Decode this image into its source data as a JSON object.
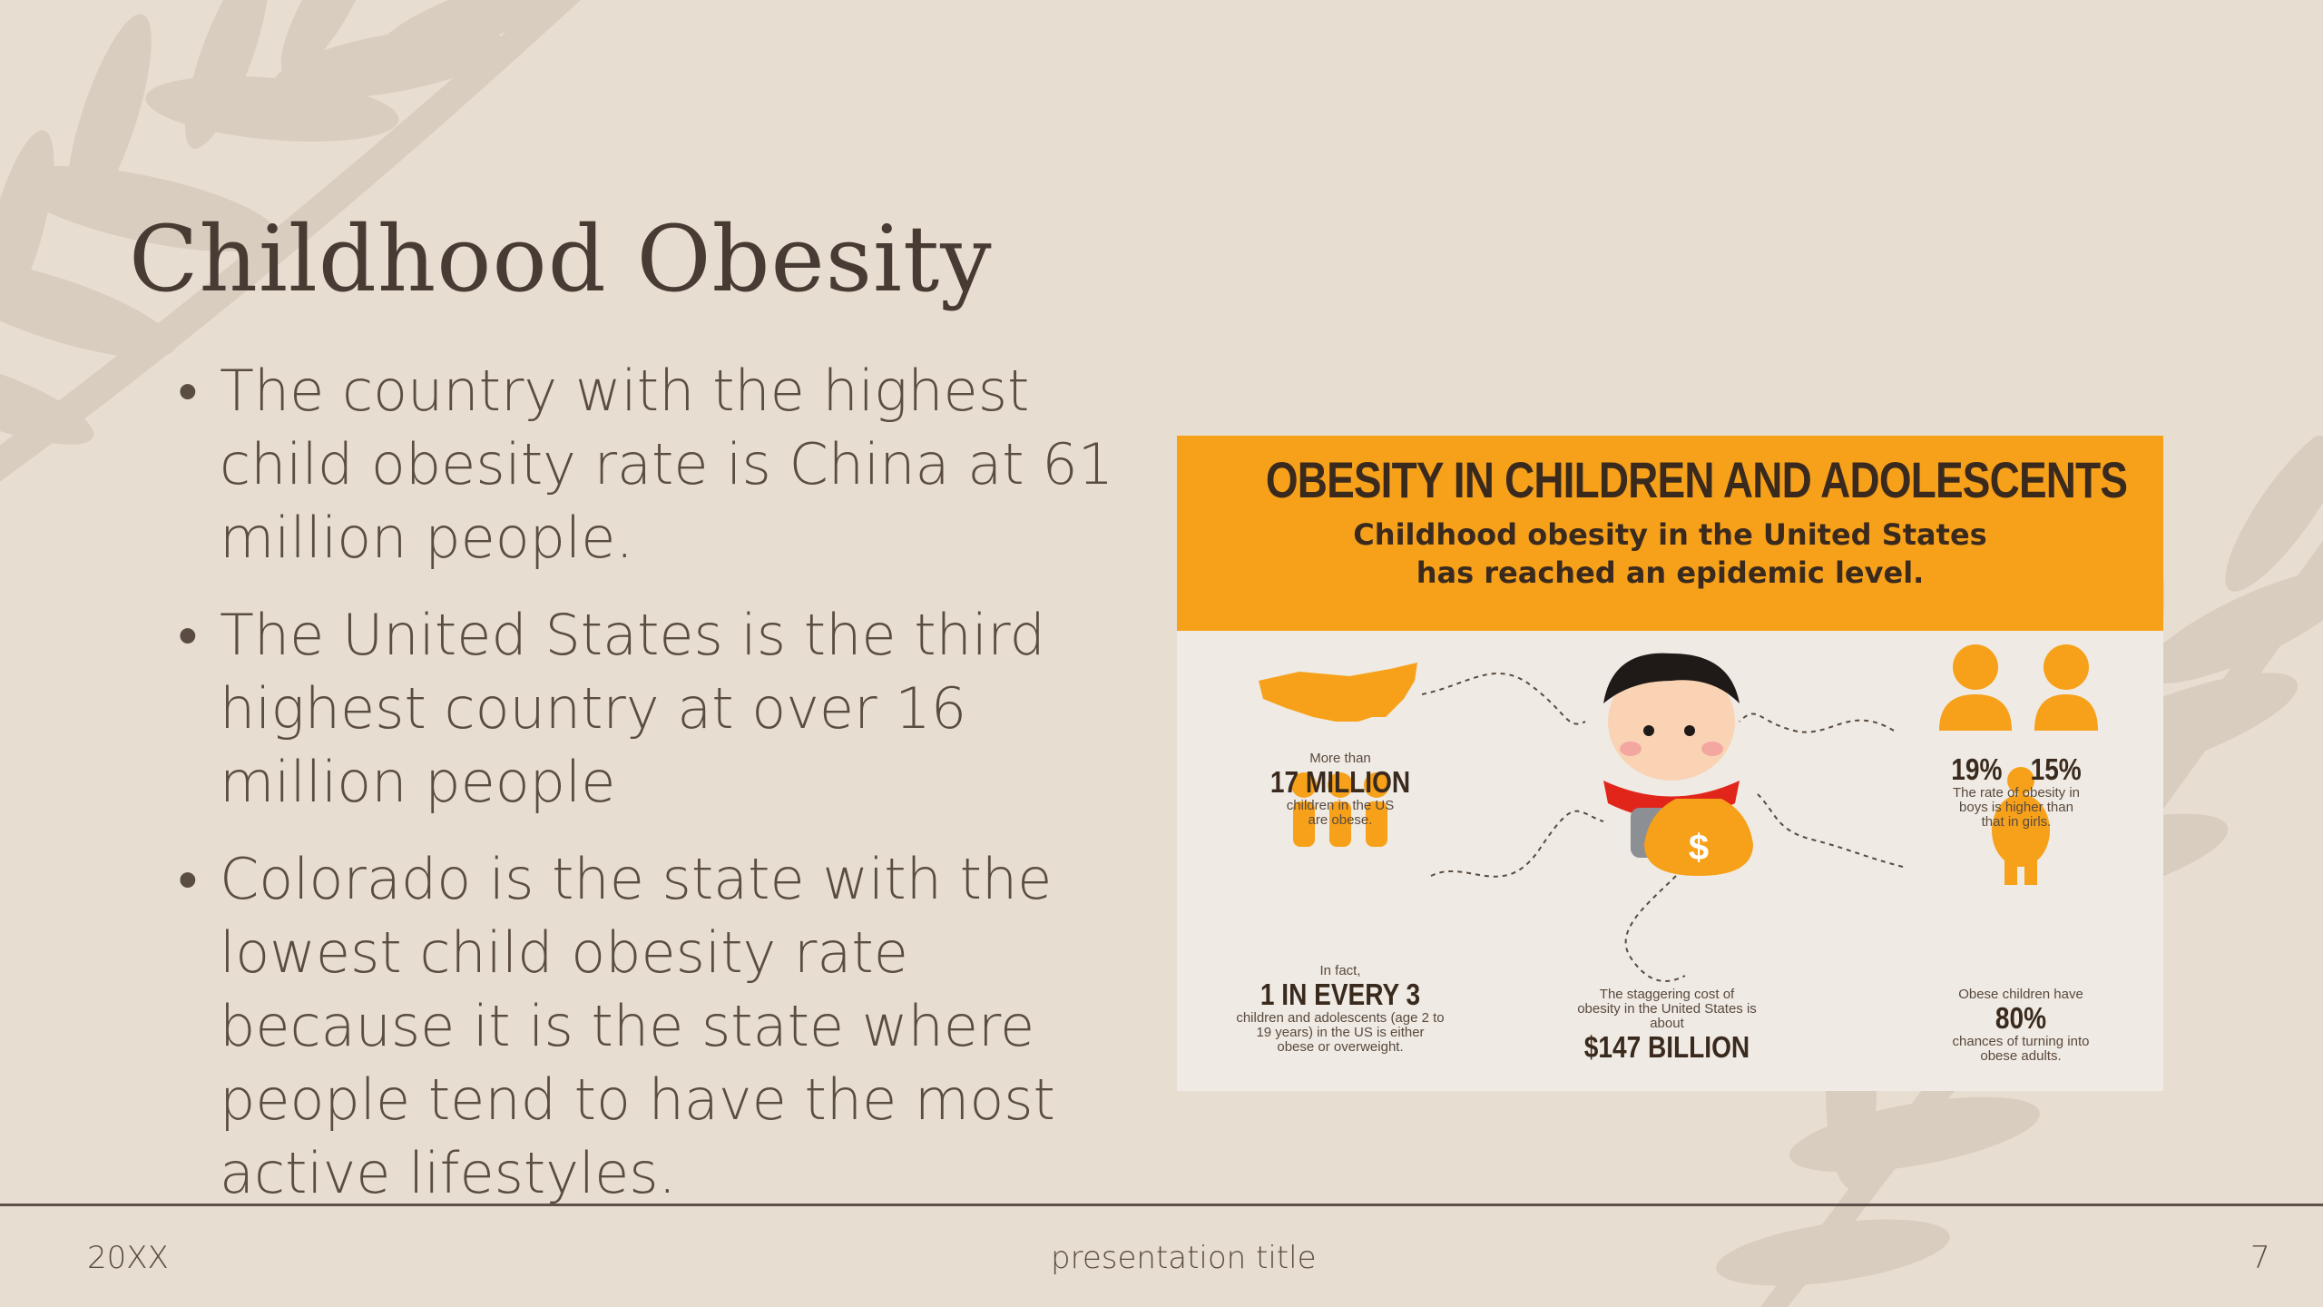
{
  "slide": {
    "title": "Childhood Obesity",
    "bullets": [
      "The country with the highest child obesity rate is China at 61 million people.",
      "The United States is the third highest country at over 16 million people",
      "Colorado is the state with the lowest child obesity rate because it is the state where people tend to have the most active lifestyles."
    ],
    "bullet_symbol": "•"
  },
  "infographic": {
    "title": "OBESITY IN CHILDREN AND ADOLESCENTS",
    "subtitle_line1": "Childhood obesity in the United States",
    "subtitle_line2": "has reached an epidemic level.",
    "stat_us": {
      "pre": "More than",
      "value": "17 MILLION",
      "post": "children in the US are obese."
    },
    "stat_gender": {
      "boys": "19%",
      "girls": "15%",
      "post": "The rate of obesity in boys is higher than that in girls."
    },
    "stat_ratio": {
      "pre": "In fact,",
      "value": "1 IN EVERY 3",
      "post": "children and adolescents (age 2 to 19 years) in the US is either obese or overweight."
    },
    "stat_cost": {
      "pre": "The staggering cost of obesity in the United States is about",
      "value": "$147 BILLION"
    },
    "stat_adult": {
      "pre": "Obese children have",
      "value": "80%",
      "post": "chances of turning into obese adults."
    },
    "colors": {
      "header": "#f7a11a",
      "icon": "#f7a11a",
      "text": "#3a2a1e"
    }
  },
  "footer": {
    "year": "20XX",
    "presentation_title": "presentation title",
    "page_number": "7"
  },
  "theme": {
    "background": "#e7ddd1",
    "leaf": "#d7cabc",
    "title_color": "#473b33"
  }
}
